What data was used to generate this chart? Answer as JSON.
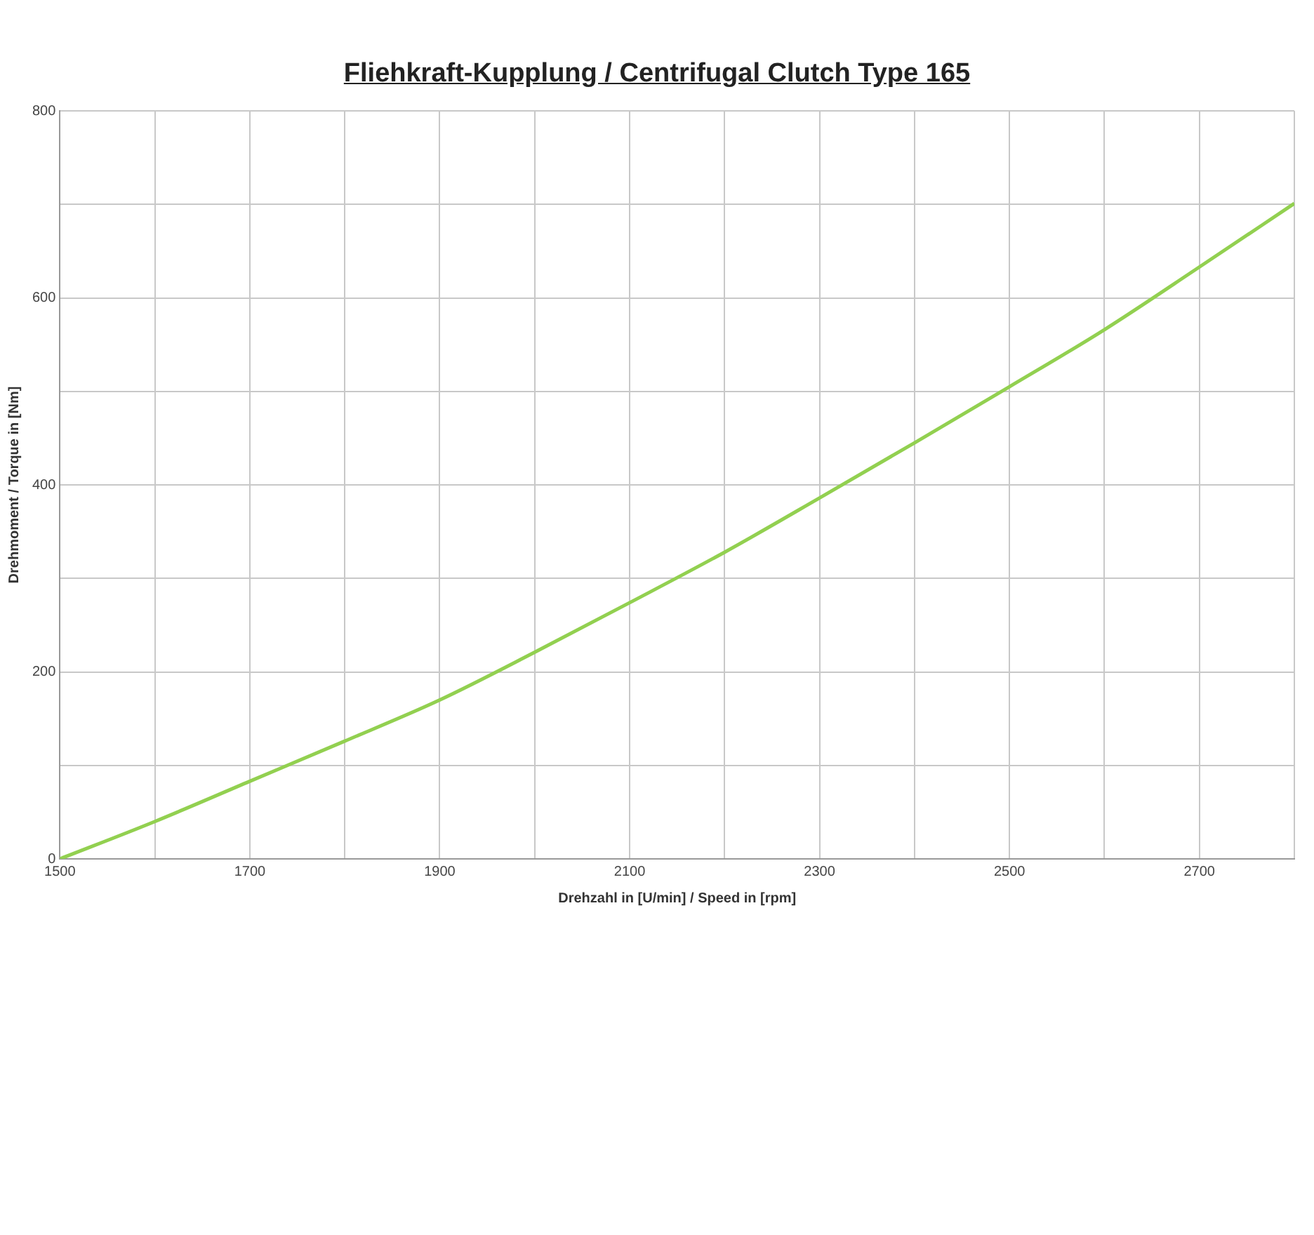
{
  "chart_data": {
    "type": "line",
    "title": "Fliehkraft-Kupplung / Centrifugal Clutch Type 165",
    "xlabel": "Drehzahl in [U/min] / Speed in [rpm]",
    "ylabel": "Drehmoment / Torque in [Nm]",
    "x": [
      1500,
      1600,
      1700,
      1800,
      1900,
      2000,
      2100,
      2200,
      2300,
      2400,
      2500,
      2600,
      2700,
      2800
    ],
    "series": [
      {
        "color": "#92d050",
        "values": [
          0,
          40,
          83,
          126,
          170,
          221,
          274,
          328,
          386,
          445,
          505,
          566,
          633,
          701
        ]
      }
    ],
    "xlim": [
      1500,
      2800
    ],
    "xticks": [
      1500,
      {
        "value": 1600,
        "label": null
      },
      1700,
      {
        "value": 1800,
        "label": null
      },
      1900,
      {
        "value": 2000,
        "label": null
      },
      2100,
      {
        "value": 2200,
        "label": null
      },
      2300,
      {
        "value": 2400,
        "label": null
      },
      2500,
      {
        "value": 2600,
        "label": null
      },
      2700,
      {
        "value": 2800,
        "label": null
      }
    ],
    "ylim": [
      0,
      800
    ],
    "yticks": [
      0,
      {
        "value": 100,
        "label": null
      },
      200,
      {
        "value": 300,
        "label": null
      },
      400,
      {
        "value": 500,
        "label": null
      },
      600,
      {
        "value": 700,
        "label": null
      },
      800
    ],
    "grid": true,
    "legend": false,
    "marker": "none",
    "line_style": "solid"
  }
}
